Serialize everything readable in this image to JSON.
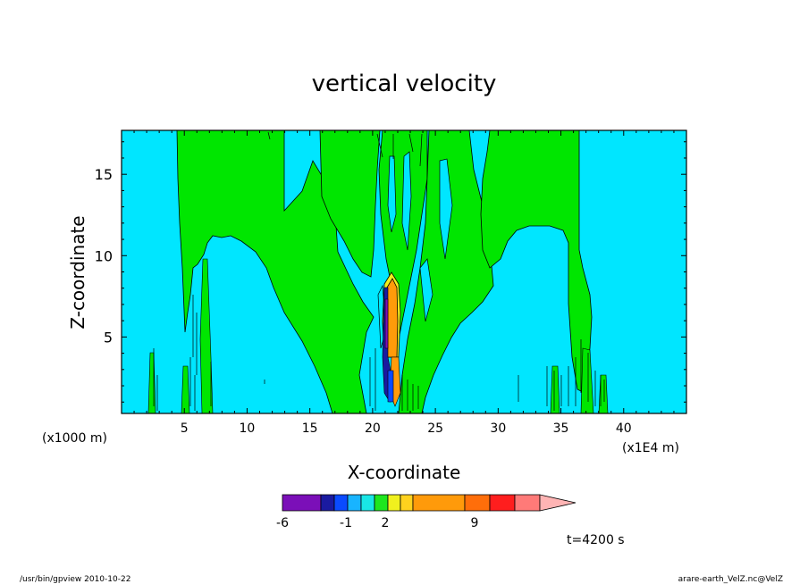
{
  "chart_data": {
    "type": "heatmap",
    "title": "vertical velocity",
    "xlabel": "X-coordinate",
    "ylabel": "Z-coordinate",
    "x_unit_left": "(x1000 m)",
    "x_unit_right": "(x1E4 m)",
    "xlim": [
      0,
      45
    ],
    "ylim": [
      0.3,
      17.7
    ],
    "x_ticks": [
      "5",
      "10",
      "15",
      "20",
      "25",
      "30",
      "35",
      "40"
    ],
    "y_ticks": [
      "5",
      "10",
      "15"
    ],
    "time_label": "t=4200 s",
    "colorbar": {
      "tick_labels": [
        "-6",
        "-1",
        "2",
        "9"
      ],
      "colors": [
        "#7b0fb8",
        "#1a1aa0",
        "#0a4bff",
        "#18b4ff",
        "#19e6e6",
        "#1ee61e",
        "#f0f01e",
        "#ffd21e",
        "#ff9a0a",
        "#ff6e0a",
        "#ff1e1e",
        "#ff7a78",
        "#ffb4b4"
      ]
    },
    "background_color": "#00e6ff",
    "green_color": "#00e600",
    "orange_color": "#ff9b0a"
  },
  "footer": {
    "left": "/usr/bin/gpview   2010-10-22",
    "right": "arare-earth_VelZ.nc@VelZ"
  }
}
